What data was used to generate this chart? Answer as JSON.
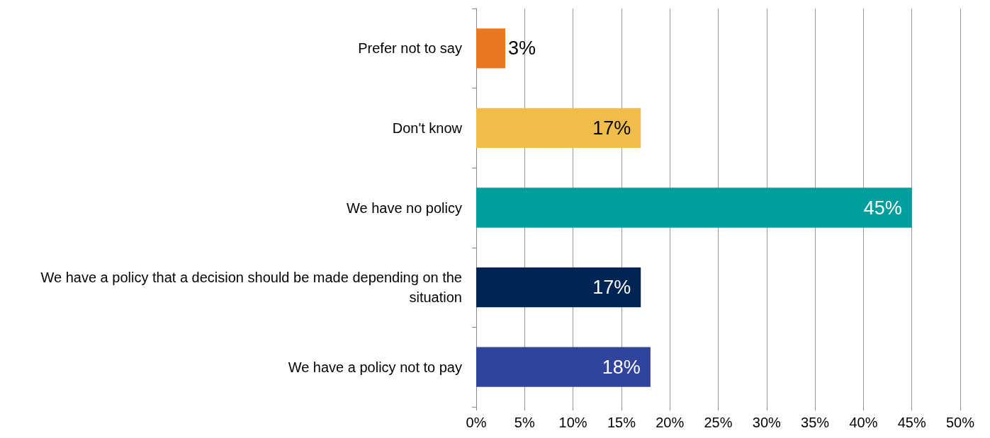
{
  "chart_data": {
    "type": "bar",
    "orientation": "horizontal",
    "categories": [
      "Prefer not to say",
      "Don't know",
      "We have no policy",
      "We have a policy that a decision should be made depending on the situation",
      "We have a policy not to pay"
    ],
    "values": [
      3,
      17,
      45,
      17,
      18
    ],
    "colors": [
      "#e87722",
      "#f0bc4a",
      "#009e9c",
      "#002554",
      "#31449b"
    ],
    "value_labels": [
      "3%",
      "17%",
      "45%",
      "17%",
      "18%"
    ],
    "xlim": [
      0,
      50
    ],
    "xticks": [
      {
        "value": 0,
        "label": "0%"
      },
      {
        "value": 5,
        "label": "5%"
      },
      {
        "value": 10,
        "label": "10%"
      },
      {
        "value": 15,
        "label": "15%"
      },
      {
        "value": 20,
        "label": "20%"
      },
      {
        "value": 25,
        "label": "25%"
      },
      {
        "value": 30,
        "label": "30%"
      },
      {
        "value": 35,
        "label": "35%"
      },
      {
        "value": 40,
        "label": "40%"
      },
      {
        "value": 45,
        "label": "45%"
      },
      {
        "value": 50,
        "label": "50%"
      }
    ],
    "grid": "x"
  }
}
